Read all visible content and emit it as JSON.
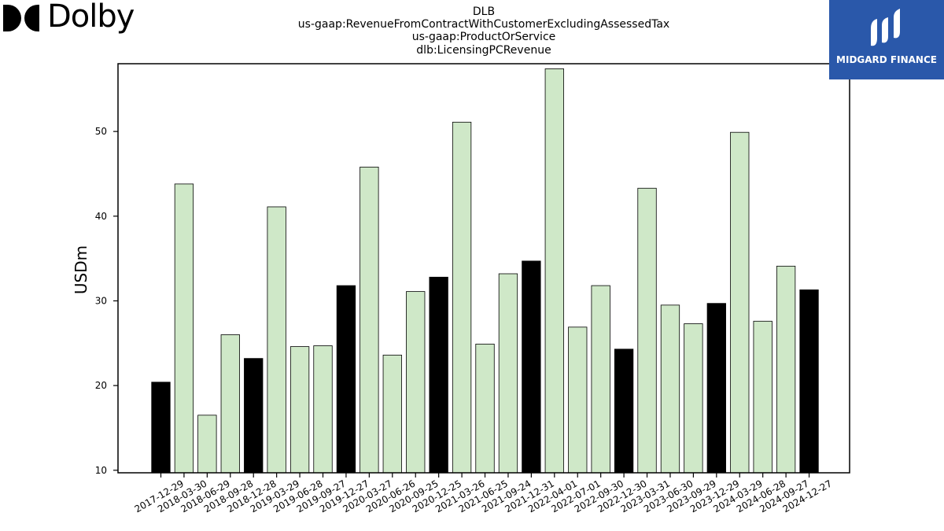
{
  "header": {
    "title_lines": [
      "DLB",
      "us-gaap:RevenueFromContractWithCustomerExcludingAssessedTax",
      "us-gaap:ProductOrService",
      "dlb:LicensingPCRevenue"
    ]
  },
  "logos": {
    "left_wordmark": "Dolby",
    "right_brand": "MIDGARD FINANCE",
    "right_bg_color": "#2a58aa"
  },
  "chart_data": {
    "type": "bar",
    "title": "",
    "xlabel": "",
    "ylabel": "USDm",
    "ylim": [
      9.7,
      58.0
    ],
    "yticks": [
      10,
      20,
      30,
      40,
      50
    ],
    "grid": false,
    "colors": {
      "quarter": "#cfe8c8",
      "year_end": "#000000",
      "edge": "#000000"
    },
    "categories": [
      "2017-12-29",
      "2018-03-30",
      "2018-06-29",
      "2018-09-28",
      "2018-12-28",
      "2019-03-29",
      "2019-06-28",
      "2019-09-27",
      "2019-12-27",
      "2020-03-27",
      "2020-06-26",
      "2020-09-25",
      "2020-12-25",
      "2021-03-26",
      "2021-06-25",
      "2021-09-24",
      "2021-12-31",
      "2022-04-01",
      "2022-07-01",
      "2022-09-30",
      "2022-12-30",
      "2023-03-31",
      "2023-06-30",
      "2023-09-29",
      "2023-12-29",
      "2024-03-29",
      "2024-06-28",
      "2024-09-27",
      "2024-12-27"
    ],
    "values": [
      20.4,
      43.8,
      16.5,
      26.0,
      23.2,
      41.1,
      24.6,
      24.7,
      31.8,
      45.8,
      23.6,
      31.1,
      32.8,
      51.1,
      24.9,
      33.2,
      34.7,
      57.4,
      26.9,
      31.8,
      24.3,
      43.3,
      29.5,
      27.3,
      29.7,
      49.9,
      27.6,
      34.1,
      31.3
    ],
    "highlight": [
      true,
      false,
      false,
      false,
      true,
      false,
      false,
      false,
      true,
      false,
      false,
      false,
      true,
      false,
      false,
      false,
      true,
      false,
      false,
      false,
      true,
      false,
      false,
      false,
      true,
      false,
      false,
      false,
      true
    ]
  }
}
